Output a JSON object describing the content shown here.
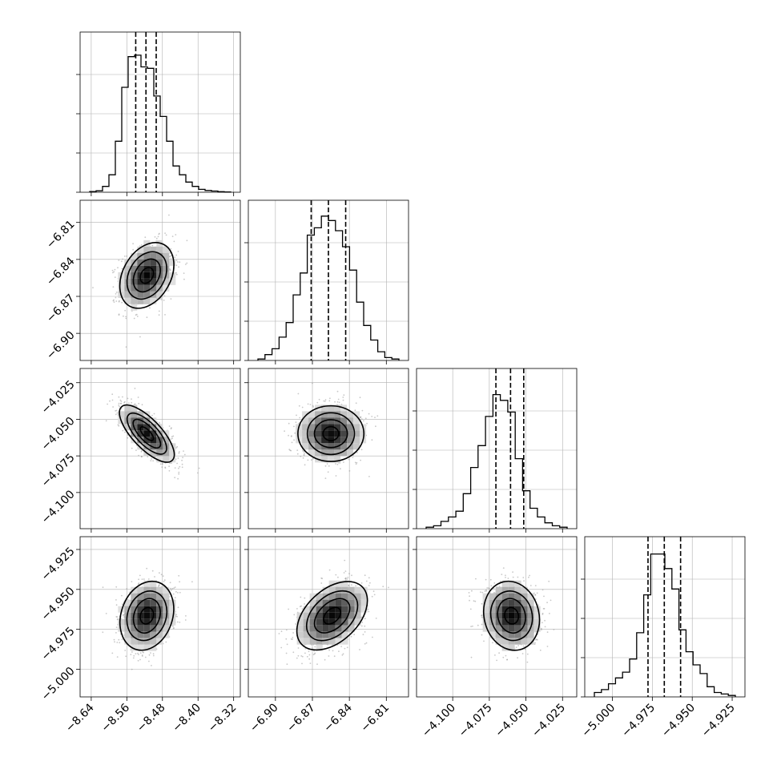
{
  "chart_data": {
    "type": "corner",
    "parameters": 4,
    "quantile_lines": [
      0.16,
      0.5,
      0.84
    ],
    "grid": true,
    "colors": {
      "line": "#000000",
      "grid": "#b0b0b0",
      "density_dark": "#000000",
      "density_light": "#ffffff",
      "scatter": "#9a9a9a"
    },
    "params": [
      {
        "range": [
          -8.665,
          -8.305
        ],
        "ticks": [
          -8.64,
          -8.56,
          -8.48,
          -8.4,
          -8.32
        ],
        "tick_labels": [
          "−8.64",
          "−8.56",
          "−8.48",
          "−8.40",
          "−8.32"
        ],
        "quantiles": [
          -8.54,
          -8.517,
          -8.494
        ]
      },
      {
        "range": [
          -6.922,
          -6.792
        ],
        "ticks": [
          -6.9,
          -6.87,
          -6.84,
          -6.81
        ],
        "tick_labels": [
          "−6.90",
          "−6.87",
          "−6.84",
          "−6.81"
        ],
        "quantiles": [
          -6.871,
          -6.857,
          -6.843
        ]
      },
      {
        "range": [
          -4.1247,
          -4.0153
        ],
        "ticks": [
          -4.1,
          -4.075,
          -4.05,
          -4.025
        ],
        "tick_labels": [
          "−4.100",
          "−4.075",
          "−4.050",
          "−4.025"
        ],
        "quantiles": [
          -4.0705,
          -4.0605,
          -4.0515
        ]
      },
      {
        "range": [
          -5.0173,
          -4.917
        ],
        "ticks": [
          -5.0,
          -4.975,
          -4.95,
          -4.925
        ],
        "tick_labels": [
          "−5.000",
          "−4.975",
          "−4.950",
          "−4.925"
        ],
        "quantiles": [
          -4.9777,
          -4.9675,
          -4.9573
        ]
      }
    ],
    "marginals": [
      {
        "counts": [
          0.005,
          0.01,
          0.04,
          0.12,
          0.35,
          0.72,
          0.93,
          0.94,
          0.86,
          0.85,
          0.66,
          0.52,
          0.35,
          0.18,
          0.12,
          0.07,
          0.04,
          0.02,
          0.012,
          0.008,
          0.004,
          0.002
        ]
      },
      {
        "counts": [
          0.01,
          0.04,
          0.08,
          0.16,
          0.26,
          0.45,
          0.6,
          0.86,
          0.91,
          0.99,
          0.96,
          0.89,
          0.78,
          0.62,
          0.4,
          0.24,
          0.14,
          0.06,
          0.02,
          0.01
        ]
      },
      {
        "counts": [
          0.01,
          0.02,
          0.05,
          0.08,
          0.12,
          0.24,
          0.42,
          0.57,
          0.77,
          0.92,
          0.88,
          0.8,
          0.48,
          0.26,
          0.14,
          0.08,
          0.04,
          0.02,
          0.01
        ]
      },
      {
        "counts": [
          0.03,
          0.05,
          0.09,
          0.13,
          0.17,
          0.26,
          0.44,
          0.7,
          0.98,
          0.98,
          0.88,
          0.74,
          0.46,
          0.31,
          0.22,
          0.16,
          0.07,
          0.03,
          0.02,
          0.01
        ]
      }
    ],
    "joint": [
      {
        "x": 0,
        "y": 1,
        "rho": 0.3,
        "sx": 0.03,
        "sy": 0.013,
        "mx": -8.515,
        "my": -6.853
      },
      {
        "x": 0,
        "y": 2,
        "rho": -0.72,
        "sx": 0.03,
        "sy": 0.0095,
        "mx": -8.515,
        "my": -4.0598
      },
      {
        "x": 1,
        "y": 2,
        "rho": 0.0,
        "sx": 0.013,
        "sy": 0.0095,
        "mx": -6.855,
        "my": -4.0598
      },
      {
        "x": 0,
        "y": 3,
        "rho": 0.18,
        "sx": 0.03,
        "sy": 0.0105,
        "mx": -8.515,
        "my": -4.9665
      },
      {
        "x": 1,
        "y": 3,
        "rho": 0.42,
        "sx": 0.014,
        "sy": 0.0105,
        "mx": -6.854,
        "my": -4.9665
      },
      {
        "x": 2,
        "y": 3,
        "rho": -0.1,
        "sx": 0.0095,
        "sy": 0.0105,
        "mx": -4.0598,
        "my": -4.9665
      }
    ]
  }
}
